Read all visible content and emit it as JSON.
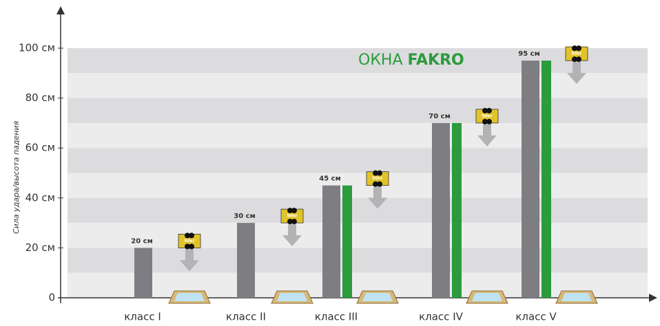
{
  "chart_data": {
    "type": "bar",
    "y_label": "Сила удара/высота падения",
    "annotation": {
      "prefix": "ОКНА",
      "brand": "FAKRO"
    },
    "weight_label": "50кг",
    "categories": [
      "класс I",
      "класс II",
      "класс III",
      "класс IV",
      "класс V"
    ],
    "series": [
      {
        "color": "#7e7e82",
        "values": [
          20,
          30,
          45,
          70,
          95
        ],
        "value_labels": [
          "20 см",
          "30 см",
          "45 см",
          "70 см",
          "95 см"
        ]
      },
      {
        "color": "#2b9b3c",
        "values": [
          null,
          null,
          45,
          70,
          95
        ]
      }
    ],
    "ylim": [
      0,
      100
    ],
    "yticks": [
      0,
      {
        "value": 20,
        "label": "20 см"
      },
      {
        "value": 40,
        "label": "40 см"
      },
      {
        "value": 60,
        "label": "60 см"
      },
      {
        "value": 80,
        "label": "80 см"
      },
      {
        "value": 100,
        "label": "100 см"
      }
    ],
    "grid": true
  }
}
